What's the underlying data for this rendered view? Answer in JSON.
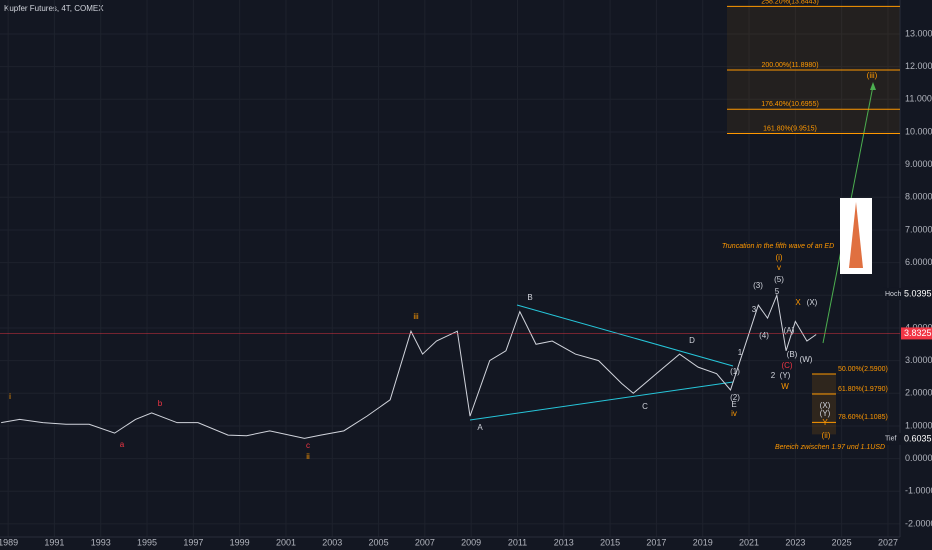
{
  "chart_data": {
    "type": "line",
    "title": "Kupfer Futures, 4T, COMEX",
    "x": [
      1988.7,
      1989.5,
      1990.5,
      1991.5,
      1992.5,
      1993.6,
      1994.5,
      1995.2,
      1996.3,
      1997.2,
      1998.5,
      1999.3,
      2000.3,
      2001.8,
      2002.5,
      2003.5,
      2004.5,
      2005.5,
      2006.4,
      2006.9,
      2007.5,
      2008.4,
      2008.95,
      2009.8,
      2010.5,
      2011.1,
      2011.8,
      2012.5,
      2013.5,
      2014.5,
      2015.5,
      2016.0,
      2017.0,
      2018.0,
      2018.8,
      2019.6,
      2020.2,
      2020.8,
      2021.4,
      2021.8,
      2022.2,
      2022.6,
      2023.0,
      2023.5,
      2023.9
    ],
    "values": [
      1.1,
      1.2,
      1.1,
      1.05,
      1.05,
      0.78,
      1.2,
      1.4,
      1.1,
      1.1,
      0.72,
      0.7,
      0.85,
      0.62,
      0.72,
      0.85,
      1.3,
      1.8,
      3.9,
      3.2,
      3.6,
      3.9,
      1.3,
      3.0,
      3.3,
      4.5,
      3.5,
      3.6,
      3.2,
      3.0,
      2.3,
      2.0,
      2.6,
      3.2,
      2.8,
      2.6,
      2.1,
      3.4,
      4.7,
      4.3,
      5.0,
      3.3,
      4.2,
      3.6,
      3.8
    ],
    "color": "#d1d4dc",
    "xlim": [
      1988.65,
      2027.52
    ],
    "xticks": [
      1989,
      1991,
      1993,
      1995,
      1997,
      1999,
      2001,
      2003,
      2005,
      2007,
      2009,
      2011,
      2013,
      2015,
      2017,
      2019,
      2021,
      2023,
      2025,
      2027
    ],
    "ylim": [
      -2.4,
      14.04
    ],
    "yticks": [
      {
        "value": -2,
        "label": "-2.0000"
      },
      {
        "value": -1,
        "label": "-1.0000"
      },
      {
        "value": 0,
        "label": "0.0000"
      },
      {
        "value": 1,
        "label": "1.0000"
      },
      {
        "value": 2,
        "label": "2.0000"
      },
      {
        "value": 3,
        "label": "3.0000"
      },
      {
        "value": 4,
        "label": "4.0000"
      },
      {
        "value": 5,
        "label": "5.0000"
      },
      {
        "value": 6,
        "label": "6.0000"
      },
      {
        "value": 7,
        "label": "7.0000"
      },
      {
        "value": 8,
        "label": "8.0000"
      },
      {
        "value": 9,
        "label": "9.0000"
      },
      {
        "value": 10,
        "label": "10.0000"
      },
      {
        "value": 11,
        "label": "11.0000"
      },
      {
        "value": 12,
        "label": "12.0000"
      },
      {
        "value": 13,
        "label": "13.0000"
      }
    ],
    "grid": true,
    "fib_levels": [
      {
        "value": 13.8443,
        "label": "258.20%(13.8443)"
      },
      {
        "value": 11.898,
        "label": "200.00%(11.8980)"
      },
      {
        "value": 10.6955,
        "label": "176.40%(10.6955)"
      },
      {
        "value": 9.9515,
        "label": "161.80%(9.9515)"
      },
      {
        "value": 2.59,
        "label": "50.00%(2.5900)"
      },
      {
        "value": 1.979,
        "label": "61.80%(1.9790)"
      },
      {
        "value": 1.1085,
        "label": "78.60%(1.1085)"
      }
    ],
    "price_labels": [
      {
        "name": "Hoch",
        "value": 5.0395,
        "label": "5.0395"
      },
      {
        "value": 3.8325,
        "label": "3.8325"
      },
      {
        "name": "Tief",
        "value": 0.6035,
        "label": "0.6035"
      }
    ],
    "notes": [
      "Truncation in the fifth wave of an ED",
      "Bereich zwischen 1.97 und 1.1USD"
    ],
    "annotations": [
      "i",
      "a",
      "b",
      "c",
      "ii",
      "iii",
      "A",
      "B",
      "C",
      "D",
      "E",
      "(2)",
      "iv",
      "(1)",
      "1",
      "2",
      "3",
      "(3)",
      "(4)",
      "5",
      "(5)",
      "(i)",
      "v",
      "X",
      "(X)",
      "(A)",
      "(B)",
      "(C)",
      "(Y)",
      "W",
      "(W)",
      "(X)",
      "(Y)",
      "Y",
      "(ii)",
      "(iii)"
    ]
  }
}
